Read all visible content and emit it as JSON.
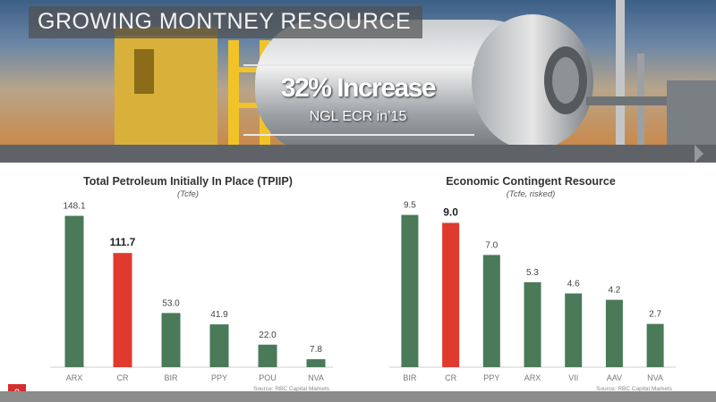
{
  "header": {
    "title": "GROWING MONTNEY RESOURCE",
    "headline": "32% Increase",
    "subheadline": "NGL ECR in’15"
  },
  "page_number": "9",
  "colors": {
    "bar": "#4a7a58",
    "highlight": "#e03a2f",
    "accent": "#d32f2f"
  },
  "chart_data": [
    {
      "type": "bar",
      "title": "Total Petroleum Initially In Place (TPIIP)",
      "subtitle": "(Tcfe)",
      "source": "Source: RBC Capital Markets",
      "categories": [
        "ARX",
        "CR",
        "BIR",
        "PPY",
        "POU",
        "NVA"
      ],
      "values": [
        148.1,
        111.7,
        53.0,
        41.9,
        22.0,
        7.8
      ],
      "labels": [
        "148.1",
        "111.7",
        "53.0",
        "41.9",
        "22.0",
        "7.8"
      ],
      "highlight": "CR",
      "ylim": [
        0,
        160
      ],
      "grid": false,
      "y_axis": false
    },
    {
      "type": "bar",
      "title": "Economic Contingent Resource",
      "subtitle": "(Tcfe, risked)",
      "source": "Source: RBC Capital Markets",
      "categories": [
        "BIR",
        "CR",
        "PPY",
        "ARX",
        "VII",
        "AAV",
        "NVA"
      ],
      "values": [
        9.5,
        9.0,
        7.0,
        5.3,
        4.6,
        4.2,
        2.7
      ],
      "labels": [
        "9.5",
        "9.0",
        "7.0",
        "5.3",
        "4.6",
        "4.2",
        "2.7"
      ],
      "highlight": "CR",
      "ylim": [
        0,
        10.2
      ],
      "grid": false,
      "y_axis": false
    }
  ]
}
